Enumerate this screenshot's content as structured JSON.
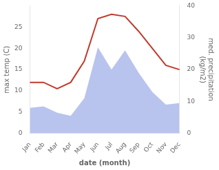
{
  "chart_data": {
    "type": "line",
    "categories": [
      "Jan",
      "Feb",
      "Mar",
      "Apr",
      "May",
      "Jun",
      "Jul",
      "Aug",
      "Sep",
      "Oct",
      "Nov",
      "Dec"
    ],
    "series": [
      {
        "color": "#c0392b",
        "values": [
          12,
          12,
          10.5,
          12,
          17,
          27,
          28,
          27.5,
          24,
          20,
          16,
          15
        ]
      },
      {
        "type": "area",
        "axis": "y2",
        "color": "#b8c4ee",
        "values": [
          8,
          8.5,
          6.5,
          5.5,
          11,
          27,
          20,
          26,
          19,
          13,
          9,
          9.5
        ]
      }
    ],
    "xlabel": "date (month)",
    "ylabel": "max temp (C)",
    "y2label": "med. precipitation\n(kg/m2)",
    "ylim": [
      0,
      30
    ],
    "yticks": [
      0,
      5,
      10,
      15,
      20,
      25
    ],
    "y2lim": [
      0,
      40
    ],
    "y2ticks": [
      0,
      10,
      20,
      30,
      40
    ],
    "grid": false
  }
}
